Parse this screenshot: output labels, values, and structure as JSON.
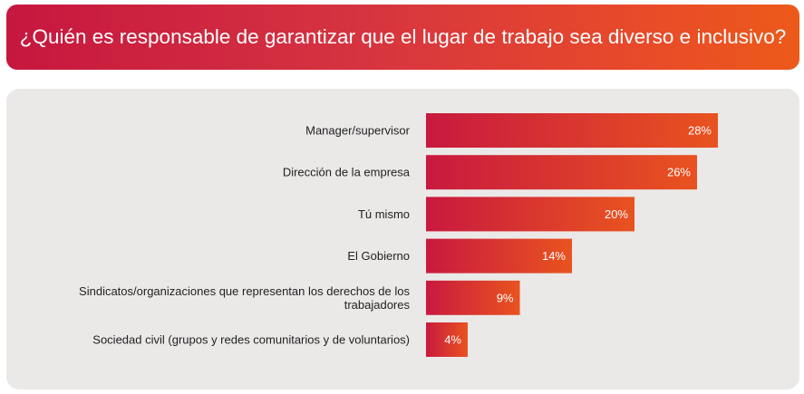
{
  "header": {
    "title": "¿Quién es responsable de garantizar que el lugar de trabajo sea diverso e inclusivo?"
  },
  "colors": {
    "header_start": "#c6173f",
    "header_end": "#ec5a1a",
    "bar_start": "#c8193f",
    "bar_end": "#e9531f",
    "panel_background": "#ebe9e8"
  },
  "chart_data": {
    "type": "bar",
    "orientation": "horizontal",
    "title": "",
    "xlabel": "",
    "ylabel": "",
    "categories": [
      [
        "Manager/supervisor"
      ],
      [
        "Dirección de la empresa"
      ],
      [
        "Tú mismo"
      ],
      [
        "El Gobierno"
      ],
      [
        "Sindicatos/organizaciones que representan los derechos de los",
        "trabajadores"
      ],
      [
        "Sociedad civil (grupos y redes comunitarios y de voluntarios)"
      ]
    ],
    "values": [
      28,
      26,
      20,
      14,
      9,
      4
    ],
    "value_labels": [
      "28%",
      "26%",
      "20%",
      "14%",
      "9%",
      "4%"
    ],
    "unit": "%",
    "grid": false,
    "legend": "none"
  }
}
